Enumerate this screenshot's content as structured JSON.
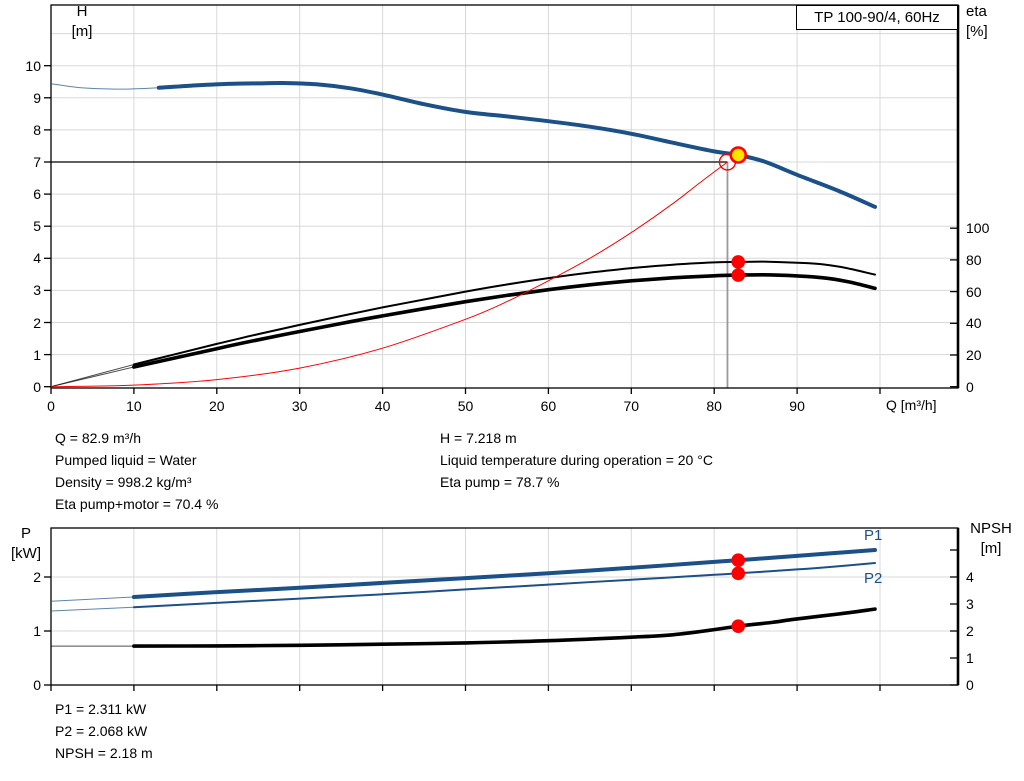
{
  "model_box": {
    "label": "TP 100-90/4, 60Hz"
  },
  "colors": {
    "blue": "#1b5088",
    "red": "#ff0000",
    "yellow": "#ffe400",
    "black": "#000000",
    "grid": "#d8d8d8",
    "gray_line": "#999999"
  },
  "operating_data": {
    "left": [
      "Q = 82.9 m³/h",
      "Pumped liquid = Water",
      "Density = 998.2 kg/m³",
      "Eta pump+motor = 70.4 %"
    ],
    "right": [
      "H = 7.218 m",
      "Liquid temperature during operation = 20 °C",
      "Eta pump = 78.7 %"
    ]
  },
  "power_data": [
    "P1 = 2.311 kW",
    "P2 = 2.068 kW",
    "NPSH = 2.18 m"
  ],
  "curve_labels": {
    "p1": "P1",
    "p2": "P2"
  },
  "chart_data": [
    {
      "id": "head-efficiency-chart",
      "type": "line",
      "title": "TP 100-90/4, 60Hz",
      "xlabel": "Q [m³/h]",
      "x_axis": {
        "label": "Q [m³/h]",
        "ticks": [
          0,
          10,
          20,
          30,
          40,
          50,
          60,
          70,
          80,
          90,
          100
        ],
        "tick_labels": [
          "0",
          "10",
          "20",
          "30",
          "40",
          "50",
          "60",
          "70",
          "80",
          "90",
          ""
        ],
        "lim": [
          0,
          109.4
        ]
      },
      "left_axis": {
        "label": [
          "H",
          "[m]"
        ],
        "ticks": [
          0,
          1,
          2,
          3,
          4,
          5,
          6,
          7,
          8,
          9,
          10
        ],
        "lim": [
          0,
          11.9
        ]
      },
      "right_axis": {
        "label": [
          "eta",
          "[%]"
        ],
        "ticks": [
          0,
          20,
          40,
          60,
          80,
          100
        ],
        "lim": [
          0,
          100
        ]
      },
      "grid": true,
      "series": [
        {
          "name": "hq-curve",
          "legend": "H",
          "axis": "left",
          "color": "blue",
          "width": 4,
          "thin_until": 9.5,
          "points": [
            [
              0,
              9.44
            ],
            [
              3,
              9.33
            ],
            [
              6,
              9.28
            ],
            [
              9,
              9.27
            ],
            [
              13,
              9.31
            ],
            [
              17,
              9.38
            ],
            [
              21,
              9.43
            ],
            [
              25,
              9.45
            ],
            [
              28,
              9.46
            ],
            [
              32,
              9.42
            ],
            [
              36,
              9.3
            ],
            [
              40,
              9.1
            ],
            [
              45,
              8.8
            ],
            [
              50,
              8.56
            ],
            [
              55,
              8.42
            ],
            [
              60,
              8.27
            ],
            [
              65,
              8.1
            ],
            [
              70,
              7.88
            ],
            [
              75,
              7.6
            ],
            [
              80,
              7.33
            ],
            [
              82.9,
              7.218
            ],
            [
              86,
              7.02
            ],
            [
              90,
              6.6
            ],
            [
              95,
              6.1
            ],
            [
              99.4,
              5.6
            ]
          ]
        },
        {
          "name": "eta-pump-curve",
          "legend": "Eta pump",
          "axis": "right",
          "color": "black",
          "width": 2,
          "thin_until": 7.5,
          "points": [
            [
              0,
              0
            ],
            [
              5,
              7
            ],
            [
              10,
              14
            ],
            [
              15,
              20.5
            ],
            [
              20,
              27
            ],
            [
              25,
              33.2
            ],
            [
              30,
              39
            ],
            [
              35,
              44.6
            ],
            [
              40,
              50
            ],
            [
              45,
              55
            ],
            [
              50,
              60
            ],
            [
              55,
              64.5
            ],
            [
              60,
              68.5
            ],
            [
              65,
              72
            ],
            [
              70,
              74.8
            ],
            [
              75,
              77
            ],
            [
              80,
              78.4
            ],
            [
              82.9,
              78.7
            ],
            [
              86,
              78.9
            ],
            [
              90,
              78.2
            ],
            [
              93,
              77.2
            ],
            [
              96,
              74.8
            ],
            [
              99.4,
              70.7
            ]
          ]
        },
        {
          "name": "eta-pump-motor-curve",
          "legend": "Eta pump+motor",
          "axis": "right",
          "color": "black",
          "width": 3.6,
          "thin_until": 7.5,
          "points": [
            [
              0,
              0
            ],
            [
              5,
              6.2
            ],
            [
              10,
              12.4
            ],
            [
              15,
              18.2
            ],
            [
              20,
              24
            ],
            [
              25,
              29.6
            ],
            [
              30,
              34.8
            ],
            [
              35,
              39.9
            ],
            [
              40,
              44.7
            ],
            [
              45,
              49.2
            ],
            [
              50,
              53.6
            ],
            [
              55,
              57.6
            ],
            [
              60,
              61.2
            ],
            [
              65,
              64.3
            ],
            [
              70,
              66.8
            ],
            [
              75,
              68.7
            ],
            [
              80,
              70
            ],
            [
              82.9,
              70.4
            ],
            [
              86,
              70.6
            ],
            [
              90,
              69.9
            ],
            [
              93,
              68.8
            ],
            [
              96,
              66.4
            ],
            [
              99.4,
              62.1
            ]
          ]
        },
        {
          "name": "system-curve",
          "legend": "System curve",
          "axis": "left",
          "color": "red",
          "width": 1,
          "points": [
            [
              0,
              0
            ],
            [
              10,
              0.05
            ],
            [
              20,
              0.22
            ],
            [
              30,
              0.58
            ],
            [
              40,
              1.2
            ],
            [
              50,
              2.1
            ],
            [
              55,
              2.65
            ],
            [
              60,
              3.3
            ],
            [
              65,
              4.0
            ],
            [
              70,
              4.8
            ],
            [
              75,
              5.7
            ],
            [
              78,
              6.3
            ],
            [
              81.6,
              7.0
            ]
          ]
        }
      ],
      "guides": {
        "head_line_h": 7.0,
        "flow_line_q": 81.6
      },
      "markers": [
        {
          "name": "requested-duty-marker",
          "style": "red-open",
          "axis": "left",
          "q": 81.6,
          "value": 7.0
        },
        {
          "name": "eta-pump-point",
          "style": "red-dot",
          "axis": "right",
          "q": 82.9,
          "value": 78.7
        },
        {
          "name": "eta-pump-motor-point",
          "style": "red-dot",
          "axis": "right",
          "q": 82.9,
          "value": 70.4
        },
        {
          "name": "duty-point-marker",
          "style": "yellow",
          "axis": "left",
          "q": 82.9,
          "value": 7.218
        }
      ]
    },
    {
      "id": "power-npsh-chart",
      "type": "line",
      "title": "",
      "xlabel": "",
      "x_axis": {
        "label": "",
        "ticks": [
          0,
          10,
          20,
          30,
          40,
          50,
          60,
          70,
          80,
          90,
          100
        ],
        "tick_labels": [],
        "lim": [
          0,
          109.4
        ]
      },
      "left_axis": {
        "label": [
          "P",
          "[kW]"
        ],
        "ticks": [
          0,
          1,
          2
        ],
        "lim": [
          0,
          2.9
        ]
      },
      "right_axis": {
        "label": [
          "NPSH",
          "[m]"
        ],
        "ticks": [
          0,
          1,
          2,
          3,
          4,
          5
        ],
        "tick_labels": [
          "0",
          "1",
          "2",
          "3",
          "4",
          ""
        ],
        "lim": [
          0,
          5.8
        ]
      },
      "grid": true,
      "series": [
        {
          "name": "p1-curve",
          "legend": "P1",
          "axis": "left",
          "color": "blue",
          "width": 4,
          "thin_until": 8,
          "points": [
            [
              0,
              1.55
            ],
            [
              10,
              1.63
            ],
            [
              20,
              1.72
            ],
            [
              30,
              1.8
            ],
            [
              40,
              1.89
            ],
            [
              50,
              1.98
            ],
            [
              60,
              2.07
            ],
            [
              70,
              2.17
            ],
            [
              80,
              2.28
            ],
            [
              82.9,
              2.311
            ],
            [
              90,
              2.39
            ],
            [
              95,
              2.45
            ],
            [
              99.4,
              2.5
            ]
          ]
        },
        {
          "name": "p2-curve",
          "legend": "P2",
          "axis": "left",
          "color": "blue",
          "width": 2,
          "thin_until": 8,
          "points": [
            [
              0,
              1.37
            ],
            [
              10,
              1.44
            ],
            [
              20,
              1.52
            ],
            [
              30,
              1.6
            ],
            [
              40,
              1.68
            ],
            [
              50,
              1.77
            ],
            [
              60,
              1.86
            ],
            [
              70,
              1.95
            ],
            [
              80,
              2.04
            ],
            [
              82.9,
              2.068
            ],
            [
              90,
              2.14
            ],
            [
              95,
              2.2
            ],
            [
              99.4,
              2.26
            ]
          ]
        },
        {
          "name": "npsh-curve",
          "legend": "NPSH",
          "axis": "right",
          "color": "black",
          "width": 3.6,
          "thin_until": 8,
          "points": [
            [
              0,
              1.44
            ],
            [
              10,
              1.44
            ],
            [
              20,
              1.45
            ],
            [
              30,
              1.47
            ],
            [
              40,
              1.51
            ],
            [
              50,
              1.56
            ],
            [
              60,
              1.64
            ],
            [
              70,
              1.77
            ],
            [
              75,
              1.86
            ],
            [
              80,
              2.05
            ],
            [
              82.9,
              2.18
            ],
            [
              87,
              2.32
            ],
            [
              90,
              2.45
            ],
            [
              95,
              2.63
            ],
            [
              99.4,
              2.81
            ]
          ]
        }
      ],
      "markers": [
        {
          "name": "p1-point",
          "style": "red-dot",
          "axis": "left",
          "q": 82.9,
          "value": 2.311
        },
        {
          "name": "p2-point",
          "style": "red-dot",
          "axis": "left",
          "q": 82.9,
          "value": 2.068
        },
        {
          "name": "npsh-point",
          "style": "red-dot",
          "axis": "right",
          "q": 82.9,
          "value": 2.18
        }
      ]
    }
  ]
}
